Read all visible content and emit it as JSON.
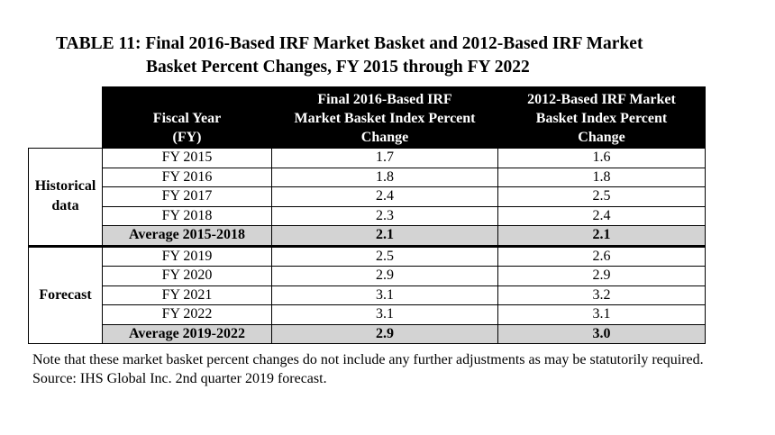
{
  "title": {
    "line1": "TABLE 11:  Final 2016-Based IRF Market Basket and 2012-Based IRF Market",
    "line2": "Basket Percent Changes, FY 2015 through FY 2022"
  },
  "headers": {
    "fiscal_year": "Fiscal Year (FY)",
    "fy_line1": "Fiscal Year",
    "fy_line2": "(FY)",
    "col2_l1": "Final 2016-Based IRF",
    "col2_l2": "Market Basket Index Percent",
    "col2_l3": "Change",
    "col3_l1": "2012-Based IRF Market",
    "col3_l2": "Basket Index Percent",
    "col3_l3": "Change"
  },
  "groups": {
    "historical_l1": "Historical",
    "historical_l2": "data",
    "forecast": "Forecast"
  },
  "rows": [
    {
      "fy": "FY 2015",
      "v2016": "1.7",
      "v2012": "1.6"
    },
    {
      "fy": "FY 2016",
      "v2016": "1.8",
      "v2012": "1.8"
    },
    {
      "fy": "FY 2017",
      "v2016": "2.4",
      "v2012": "2.5"
    },
    {
      "fy": "FY 2018",
      "v2016": "2.3",
      "v2012": "2.4"
    },
    {
      "fy": "Average 2015-2018",
      "v2016": "2.1",
      "v2012": "2.1"
    },
    {
      "fy": "FY 2019",
      "v2016": "2.5",
      "v2012": "2.6"
    },
    {
      "fy": "FY 2020",
      "v2016": "2.9",
      "v2012": "2.9"
    },
    {
      "fy": "FY 2021",
      "v2016": "3.1",
      "v2012": "3.2"
    },
    {
      "fy": "FY 2022",
      "v2016": "3.1",
      "v2012": "3.1"
    },
    {
      "fy": "Average 2019-2022",
      "v2016": "2.9",
      "v2012": "3.0"
    }
  ],
  "notes": {
    "note": "Note that these market basket percent changes do not include any further adjustments as may be statutorily required.",
    "source": "Source:  IHS Global Inc. 2nd quarter 2019 forecast."
  },
  "colors": {
    "header_bg": "#000000",
    "average_bg": "#d3d3d3"
  }
}
